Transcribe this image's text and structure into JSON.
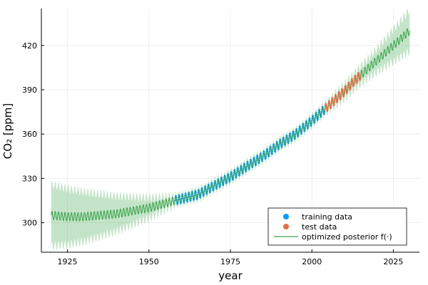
{
  "chart_data": {
    "type": "scatter",
    "xlabel": "year",
    "ylabel": "CO₂ [ppm]",
    "xlim": [
      1917,
      2033
    ],
    "ylim": [
      280,
      445
    ],
    "x_ticks": [
      1925,
      1950,
      1975,
      2000,
      2025
    ],
    "y_ticks": [
      300,
      330,
      360,
      390,
      420
    ],
    "grid": true,
    "legend_position": "bottom-right",
    "colors": {
      "training": "#009AFA",
      "test": "#E26F46",
      "posterior": "#3DA44D",
      "band": "#3DA44D"
    },
    "series": [
      {
        "name": "training data",
        "kind": "markers",
        "x_range": [
          1958,
          2004
        ],
        "points": [
          [
            1958,
            315
          ],
          [
            1965,
            319
          ],
          [
            1970,
            325
          ],
          [
            1975,
            331
          ],
          [
            1980,
            338
          ],
          [
            1985,
            345
          ],
          [
            1990,
            353
          ],
          [
            1995,
            360
          ],
          [
            2000,
            369
          ],
          [
            2004,
            377
          ]
        ],
        "seasonal_amplitude_ppm": 3
      },
      {
        "name": "test data",
        "kind": "markers",
        "x_range": [
          2004,
          2015
        ],
        "points": [
          [
            2004,
            377
          ],
          [
            2007,
            383
          ],
          [
            2010,
            389
          ],
          [
            2013,
            396
          ],
          [
            2015,
            400
          ]
        ],
        "seasonal_amplitude_ppm": 3
      },
      {
        "name": "optimized posterior f(·)",
        "kind": "line_with_band",
        "mean_points": [
          [
            1920,
            305
          ],
          [
            1925,
            304
          ],
          [
            1930,
            304
          ],
          [
            1940,
            306
          ],
          [
            1950,
            310
          ],
          [
            1958,
            315
          ],
          [
            1965,
            319
          ],
          [
            1970,
            325
          ],
          [
            1975,
            331
          ],
          [
            1980,
            338
          ],
          [
            1985,
            345
          ],
          [
            1990,
            353
          ],
          [
            1995,
            360
          ],
          [
            2000,
            369
          ],
          [
            2005,
            379
          ],
          [
            2010,
            389
          ],
          [
            2015,
            400
          ],
          [
            2020,
            410
          ],
          [
            2025,
            420
          ],
          [
            2030,
            430
          ]
        ],
        "band_halfwidth_points": [
          [
            1920,
            21
          ],
          [
            1930,
            17
          ],
          [
            1940,
            12
          ],
          [
            1950,
            7
          ],
          [
            1958,
            3
          ],
          [
            2004,
            3
          ],
          [
            2010,
            5
          ],
          [
            2015,
            6
          ],
          [
            2020,
            8
          ],
          [
            2025,
            11
          ],
          [
            2030,
            14
          ]
        ],
        "seasonal_amplitude_ppm": 2.8
      }
    ]
  }
}
